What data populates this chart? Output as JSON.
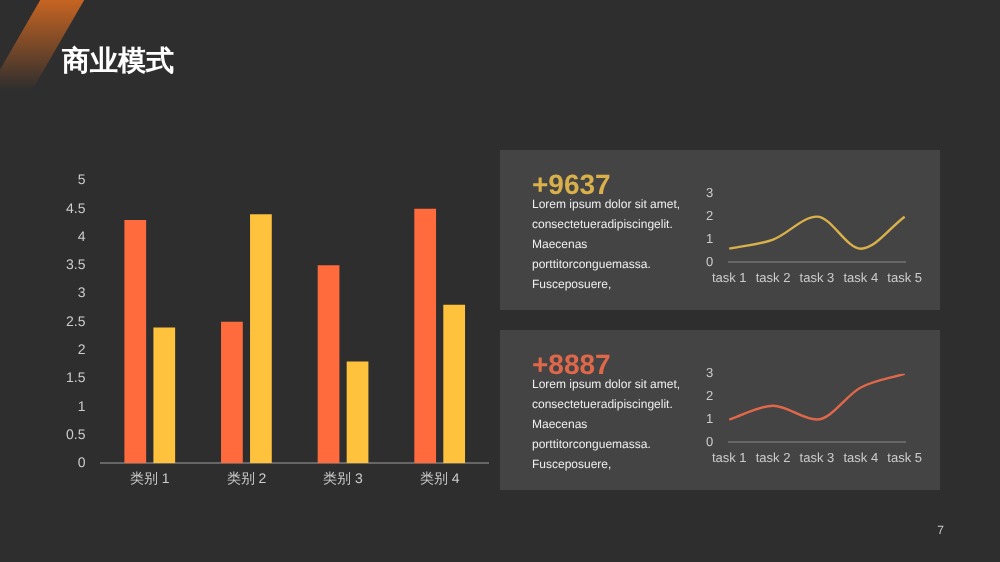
{
  "chart_data": [
    {
      "type": "bar",
      "title": "商业模式",
      "categories": [
        "类别 1",
        "类别 2",
        "类别 3",
        "类别 4"
      ],
      "series": [
        {
          "color": "#ff6b3d",
          "values": [
            4.3,
            2.5,
            3.5,
            4.5
          ]
        },
        {
          "color": "#ffc23d",
          "values": [
            2.4,
            4.4,
            1.8,
            2.8
          ]
        }
      ],
      "ylim": [
        0,
        5
      ],
      "yticks": [
        0,
        0.5,
        1,
        1.5,
        2,
        2.5,
        3,
        3.5,
        4,
        4.5,
        5
      ],
      "grid": false,
      "legend": false,
      "annotations": [
        "7"
      ]
    },
    {
      "type": "line",
      "title": "+9637",
      "categories": [
        "task 1",
        "task 2",
        "task 3",
        "task 4",
        "task 5"
      ],
      "series": [
        {
          "color": "#d9b04a",
          "values": [
            0.6,
            1.0,
            2.0,
            0.6,
            2.0
          ]
        }
      ],
      "ylim": [
        0,
        3
      ],
      "yticks": [
        0,
        1,
        2,
        3
      ],
      "grid": false,
      "legend": false,
      "marker": "none",
      "annotations": [
        "Lorem ipsum dolor sit amet, consectetueradipiscingelit. Maecenas porttitorconguemassa. Fusceposuere,"
      ]
    },
    {
      "type": "line",
      "title": "+8887",
      "categories": [
        "task 1",
        "task 2",
        "task 3",
        "task 4",
        "task 5"
      ],
      "series": [
        {
          "color": "#e0684a",
          "values": [
            1.0,
            1.6,
            1.0,
            2.4,
            3.0
          ]
        }
      ],
      "ylim": [
        0,
        3
      ],
      "yticks": [
        0,
        1,
        2,
        3
      ],
      "grid": false,
      "legend": false,
      "marker": "none",
      "annotations": [
        "Lorem ipsum dolor sit amet, consectetueradipiscingelit. Maecenas porttitorconguemassa. Fusceposuere,"
      ]
    }
  ]
}
